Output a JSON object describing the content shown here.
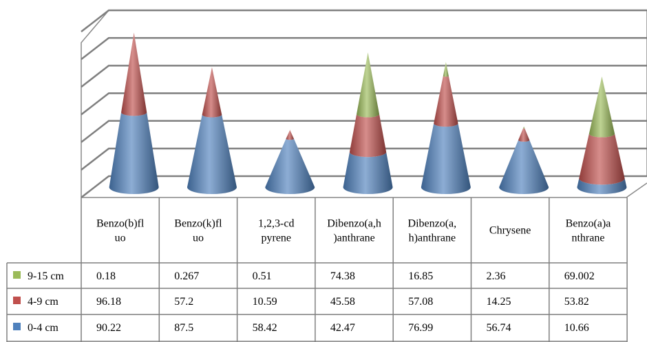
{
  "chart_data": {
    "type": "bar",
    "style": "3d-cone-stacked",
    "categories": [
      [
        "Benzo(b)fl",
        "uo"
      ],
      [
        "Benzo(k)fl",
        "uo"
      ],
      [
        "1,2,3-cd",
        "pyrene"
      ],
      [
        "Dibenzo(a,h",
        ")anthrane"
      ],
      [
        "Dibenzo(a,",
        "h)anthrane"
      ],
      [
        "Chrysene"
      ],
      [
        "Benzo(a)a",
        "nthrane"
      ]
    ],
    "series": [
      {
        "name": "9-15 cm",
        "color": "#9bbb59",
        "values": [
          0.18,
          0.267,
          0.51,
          74.38,
          16.85,
          2.36,
          69.002
        ],
        "labels": [
          "0.18",
          "0.267",
          "0.51",
          "74.38",
          "16.85",
          "2.36",
          "69.002"
        ]
      },
      {
        "name": "4-9 cm",
        "color": "#c0504d",
        "values": [
          96.18,
          57.2,
          10.59,
          45.58,
          57.08,
          14.25,
          53.82
        ],
        "labels": [
          "96.18",
          "57.2",
          "10.59",
          "45.58",
          "57.08",
          "14.25",
          "53.82"
        ]
      },
      {
        "name": "0-4 cm",
        "color": "#4f81bd",
        "values": [
          90.22,
          87.5,
          58.42,
          42.47,
          76.99,
          56.74,
          10.66
        ],
        "labels": [
          "90.22",
          "87.5",
          "58.42",
          "42.47",
          "76.99",
          "56.74",
          "10.66"
        ]
      }
    ],
    "stack_order_bottom_to_top": [
      "0-4 cm",
      "4-9 cm",
      "9-15 cm"
    ],
    "ylim": [
      0,
      200
    ],
    "gridlines": 6,
    "grid": true,
    "legend": "data-table"
  }
}
